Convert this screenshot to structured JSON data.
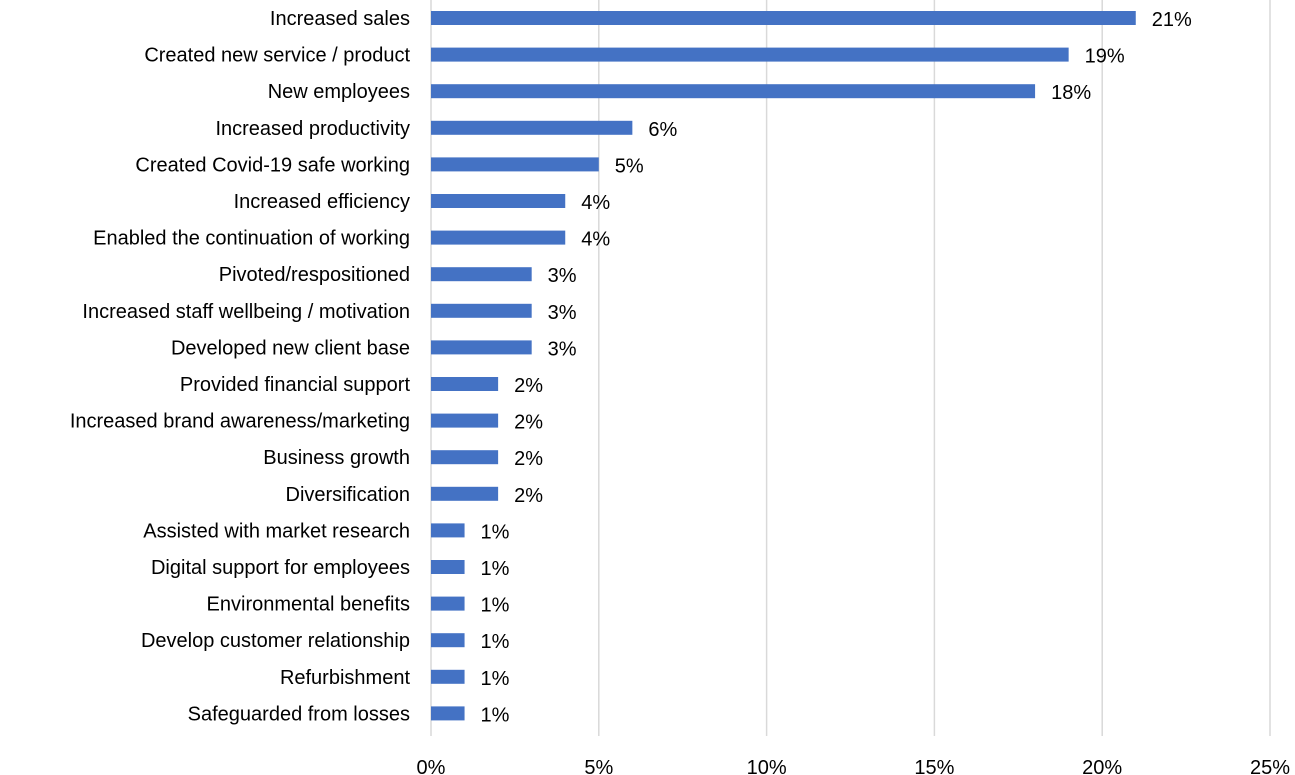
{
  "chart_data": {
    "type": "bar",
    "orientation": "horizontal",
    "categories": [
      "Increased sales",
      "Created new service / product",
      "New employees",
      "Increased productivity",
      "Created Covid-19 safe working",
      "Increased efficiency",
      "Enabled the continuation of working",
      "Pivoted/respositioned",
      "Increased staff wellbeing / motivation",
      "Developed new client base",
      "Provided financial support",
      "Increased brand awareness/marketing",
      "Business growth",
      "Diversification",
      "Assisted with market research",
      "Digital support for employees",
      "Environmental benefits",
      "Develop customer relationship",
      "Refurbishment",
      "Safeguarded from losses"
    ],
    "values": [
      21,
      19,
      18,
      6,
      5,
      4,
      4,
      3,
      3,
      3,
      2,
      2,
      2,
      2,
      1,
      1,
      1,
      1,
      1,
      1
    ],
    "data_labels": [
      "21%",
      "19%",
      "18%",
      "6%",
      "5%",
      "4%",
      "4%",
      "3%",
      "3%",
      "3%",
      "2%",
      "2%",
      "2%",
      "2%",
      "1%",
      "1%",
      "1%",
      "1%",
      "1%",
      "1%"
    ],
    "value_unit": "%",
    "xlim": [
      0,
      25
    ],
    "x_ticks": [
      0,
      5,
      10,
      15,
      20,
      25
    ],
    "x_tick_labels": [
      "0%",
      "5%",
      "10%",
      "15%",
      "20%",
      "25%"
    ],
    "title": "",
    "xlabel": "",
    "ylabel": "",
    "grid": "vertical",
    "legend": "none",
    "bar_color": "#4472c4",
    "grid_color": "#d9d9d9"
  }
}
